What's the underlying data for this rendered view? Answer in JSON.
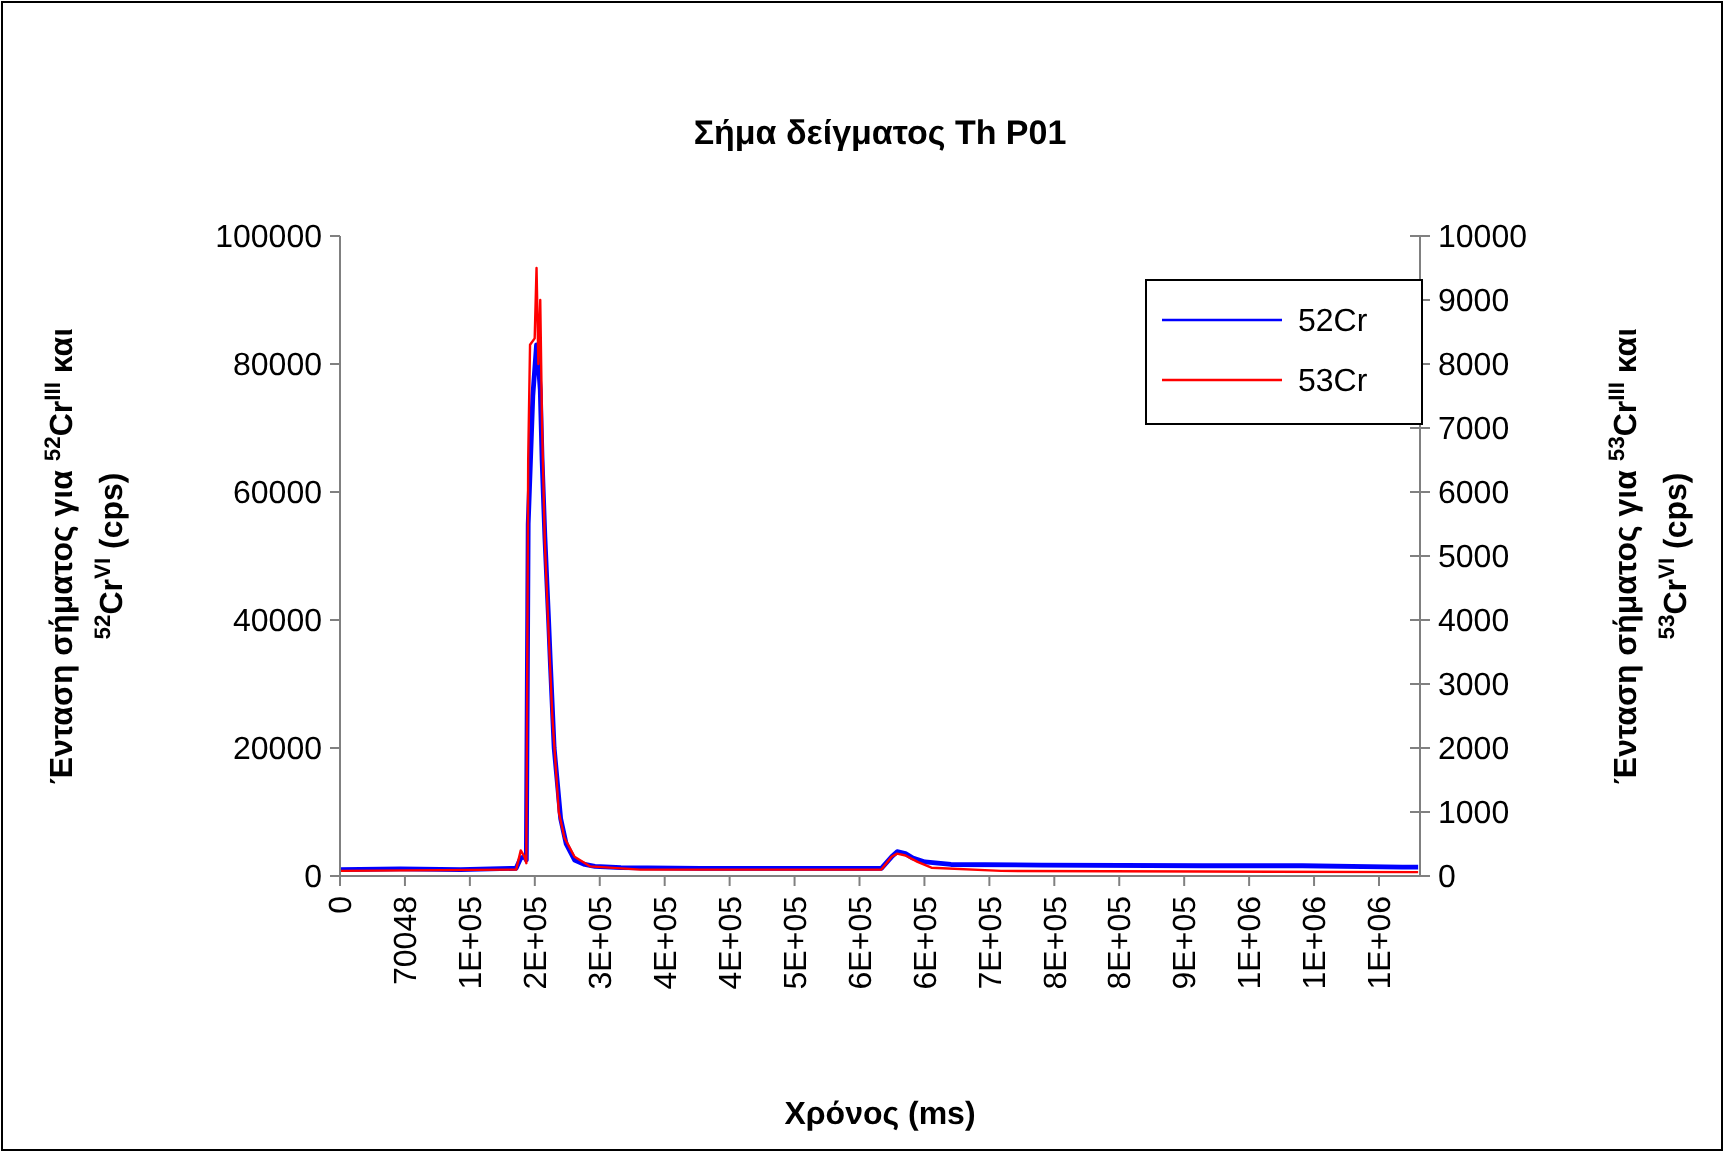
{
  "chart_data": {
    "type": "line",
    "title": "Σήμα δείγματος Th P01",
    "xlabel": "Χρόνος (ms)",
    "ylabel": "Ένταση σήματος για $^{52}$Cr$^{III}$ και $^{52}$Cr$^{VI}$ (cps)",
    "y2label": "Ένταση σήματος για $^{53}$Cr$^{III}$ και $^{53}$Cr$^{VI}$ (cps)",
    "xlim": [
      0,
      1165000
    ],
    "xticks": [
      0,
      70048,
      {
        "value": 140096,
        "label": "1E+05"
      },
      {
        "value": 210144,
        "label": "2E+05"
      },
      {
        "value": 280192,
        "label": "3E+05"
      },
      {
        "value": 350240,
        "label": "4E+05"
      },
      {
        "value": 420288,
        "label": "4E+05"
      },
      {
        "value": 490336,
        "label": "5E+05"
      },
      {
        "value": 560384,
        "label": "6E+05"
      },
      {
        "value": 630432,
        "label": "6E+05"
      },
      {
        "value": 700480,
        "label": "7E+05"
      },
      {
        "value": 770528,
        "label": "8E+05"
      },
      {
        "value": 840576,
        "label": "8E+05"
      },
      {
        "value": 910624,
        "label": "9E+05"
      },
      {
        "value": 980672,
        "label": "1E+06"
      },
      {
        "value": 1050720,
        "label": "1E+06"
      },
      {
        "value": 1120768,
        "label": "1E+06"
      }
    ],
    "ylim": [
      0,
      100000
    ],
    "yticks": [
      0,
      20000,
      40000,
      60000,
      80000,
      100000
    ],
    "y2lim": [
      0,
      10000
    ],
    "y2ticks": [
      0,
      1000,
      2000,
      3000,
      4000,
      5000,
      6000,
      7000,
      8000,
      9000,
      10000
    ],
    "grid": false,
    "legend": "top right",
    "marker": "none",
    "line_style": "solid",
    "series": [
      {
        "name": "52Cr",
        "color": "#0000ff",
        "x": [
          0,
          65000,
          130000,
          190000,
          195000,
          199000,
          201000,
          203000,
          208000,
          212000,
          214000,
          216000,
          218000,
          221000,
          225000,
          227000,
          231000,
          238000,
          244000,
          253000,
          264000,
          275000,
          303000,
          389000,
          497000,
          584000,
          595000,
          601000,
          610000,
          618000,
          631000,
          659000,
          757000,
          930000,
          1038000,
          1146000,
          1163000
        ],
        "values": [
          1000,
          1100,
          1000,
          1200,
          2800,
          3000,
          2500,
          55000,
          75000,
          83000,
          80000,
          76000,
          65000,
          53000,
          40000,
          33000,
          20000,
          9000,
          5000,
          2500,
          1800,
          1500,
          1300,
          1200,
          1200,
          1200,
          3000,
          3800,
          3500,
          2800,
          2200,
          1800,
          1700,
          1600,
          1600,
          1400,
          1400
        ]
      },
      {
        "name": "53Cr",
        "color": "#ff0000",
        "axis": "y2",
        "x": [
          0,
          190000,
          195000,
          199000,
          201000,
          203000,
          205000,
          210000,
          212000,
          214000,
          216000,
          218000,
          221000,
          225000,
          229000,
          236000,
          242000,
          253000,
          270000,
          324000,
          584000,
          595000,
          601000,
          610000,
          623000,
          638000,
          713000,
          930000,
          1163000
        ],
        "values": [
          80,
          100,
          400,
          300,
          200,
          6500,
          8300,
          8400,
          9500,
          8000,
          9000,
          7000,
          5200,
          3800,
          2500,
          1000,
          600,
          300,
          150,
          100,
          100,
          300,
          350,
          320,
          220,
          130,
          80,
          70,
          60
        ]
      }
    ]
  }
}
